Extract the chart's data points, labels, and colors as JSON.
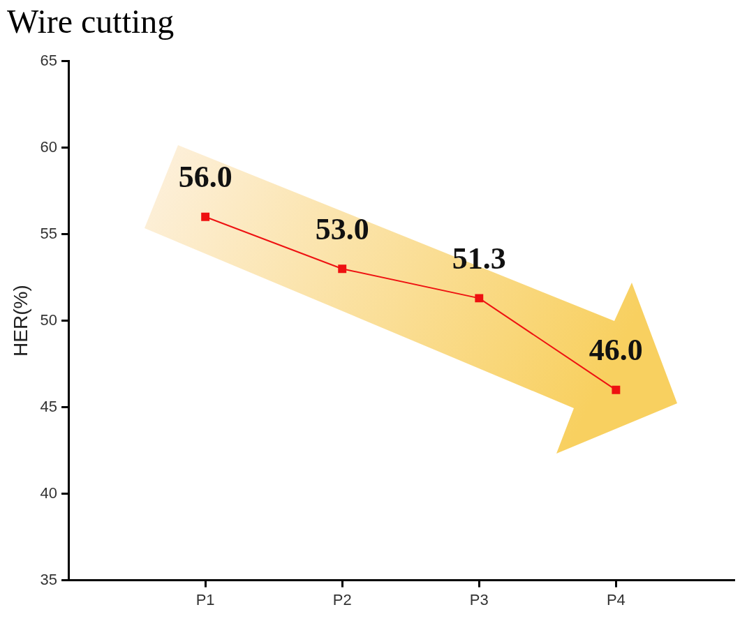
{
  "chart_data": {
    "type": "line",
    "title": "Wire cutting",
    "ylabel": "HER(%)",
    "categories": [
      "P1",
      "P2",
      "P3",
      "P4"
    ],
    "series": [
      {
        "color": "#ee1111",
        "values": [
          56.0,
          53.0,
          51.3,
          46.0
        ],
        "value_labels": [
          "56.0",
          "53.0",
          "51.3",
          "46.0"
        ]
      }
    ],
    "ylim": [
      35,
      65
    ],
    "yticks": [
      35,
      40,
      45,
      50,
      55,
      60,
      65
    ],
    "grid": false,
    "legend": false,
    "marker": "square",
    "line_style": "solid"
  }
}
